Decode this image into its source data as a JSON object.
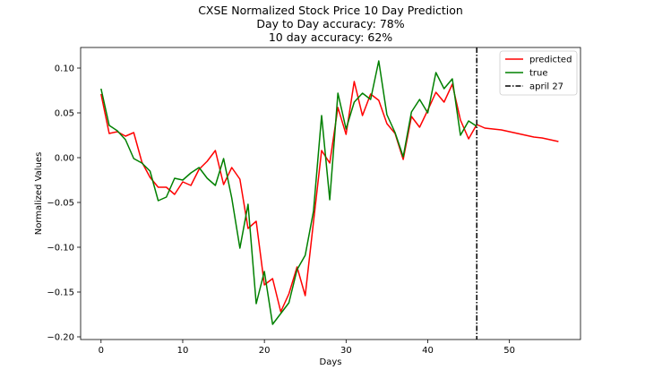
{
  "chart_data": {
    "type": "line",
    "title_lines": [
      "CXSE Normalized Stock Price 10 Day Prediction",
      "Day to Day accuracy: 78%",
      "10 day accuracy: 62%"
    ],
    "xlabel": "Days",
    "ylabel": "Normalized Values",
    "xlim": [
      -2.5,
      58.7
    ],
    "ylim": [
      -0.203,
      0.123
    ],
    "xticks": [
      0,
      10,
      20,
      30,
      40,
      50
    ],
    "yticks": [
      -0.2,
      -0.15,
      -0.1,
      -0.05,
      0.0,
      0.05,
      0.1
    ],
    "ytick_labels": [
      "−0.20",
      "−0.15",
      "−0.10",
      "−0.05",
      "0.00",
      "0.05",
      "0.10"
    ],
    "legend_position": "top-right",
    "grid": false,
    "series": [
      {
        "name": "predicted",
        "color": "#ff0000",
        "x": [
          0,
          1,
          2,
          3,
          4,
          5,
          6,
          7,
          8,
          9,
          10,
          11,
          12,
          13,
          14,
          15,
          16,
          17,
          18,
          19,
          20,
          21,
          22,
          23,
          24,
          25,
          26,
          27,
          28,
          29,
          30,
          31,
          32,
          33,
          34,
          35,
          36,
          37,
          38,
          39,
          40,
          41,
          42,
          43,
          44,
          45,
          46,
          47,
          48,
          49,
          50,
          51,
          52,
          53,
          54,
          55,
          56
        ],
        "values": [
          0.071,
          0.027,
          0.029,
          0.024,
          0.028,
          -0.005,
          -0.022,
          -0.033,
          -0.033,
          -0.041,
          -0.027,
          -0.031,
          -0.013,
          -0.004,
          0.008,
          -0.03,
          -0.011,
          -0.024,
          -0.079,
          -0.071,
          -0.142,
          -0.135,
          -0.172,
          -0.152,
          -0.122,
          -0.154,
          -0.072,
          0.008,
          -0.006,
          0.056,
          0.026,
          0.085,
          0.047,
          0.071,
          0.064,
          0.038,
          0.027,
          -0.002,
          0.046,
          0.034,
          0.053,
          0.073,
          0.062,
          0.082,
          0.042,
          0.021,
          0.037,
          0.033,
          0.032,
          0.031,
          0.029,
          0.027,
          0.025,
          0.023,
          0.022,
          0.02,
          0.018
        ]
      },
      {
        "name": "true",
        "color": "#008000",
        "x": [
          0,
          1,
          2,
          3,
          4,
          5,
          6,
          7,
          8,
          9,
          10,
          11,
          12,
          13,
          14,
          15,
          16,
          17,
          18,
          19,
          20,
          21,
          22,
          23,
          24,
          25,
          26,
          27,
          28,
          29,
          30,
          31,
          32,
          33,
          34,
          35,
          36,
          37,
          38,
          39,
          40,
          41,
          42,
          43,
          44,
          45,
          46
        ],
        "values": [
          0.077,
          0.036,
          0.03,
          0.02,
          -0.001,
          -0.006,
          -0.015,
          -0.048,
          -0.044,
          -0.023,
          -0.025,
          -0.017,
          -0.011,
          -0.023,
          -0.031,
          -0.001,
          -0.045,
          -0.101,
          -0.052,
          -0.163,
          -0.127,
          -0.186,
          -0.174,
          -0.162,
          -0.125,
          -0.109,
          -0.06,
          0.047,
          -0.047,
          0.072,
          0.032,
          0.062,
          0.072,
          0.065,
          0.108,
          0.048,
          0.028,
          0.001,
          0.051,
          0.065,
          0.05,
          0.095,
          0.077,
          0.088,
          0.025,
          0.041,
          0.035
        ]
      },
      {
        "name": "april 27",
        "color": "#000000",
        "style": "dash-dot",
        "vertical_line_x": 46
      }
    ]
  }
}
